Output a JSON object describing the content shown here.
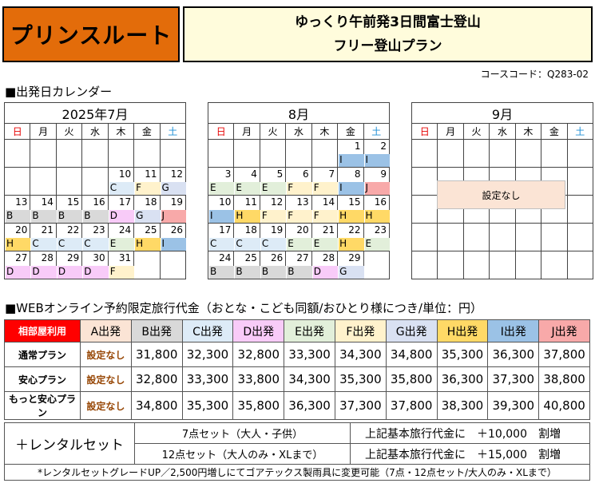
{
  "header": {
    "brand": "プリンスルート",
    "title_line1": "ゆっくり午前発3日間富士登山",
    "title_line2": "フリー登山プラン",
    "course_code": "コースコード：Q283-02"
  },
  "calendar_section_title": "■出発日カレンダー",
  "weekdays": [
    "日",
    "月",
    "火",
    "水",
    "木",
    "金",
    "土"
  ],
  "code_colors": {
    "A": "#fbe4d5",
    "B": "#d9d9d9",
    "C": "#ddebf7",
    "D": "#f8cbf8",
    "E": "#e2efda",
    "F": "#fff2cc",
    "G": "#d9e1f2",
    "H": "#ffd966",
    "I": "#9bc2e6",
    "J": "#f8a9a9"
  },
  "calendars": [
    {
      "month": "2025年7月",
      "weeks": [
        [
          {
            "d": ""
          },
          {
            "d": ""
          },
          {
            "d": ""
          },
          {
            "d": ""
          },
          {
            "d": ""
          },
          {
            "d": ""
          },
          {
            "d": ""
          }
        ],
        [
          {
            "d": ""
          },
          {
            "d": ""
          },
          {
            "d": ""
          },
          {
            "d": ""
          },
          {
            "d": "10",
            "c": "C"
          },
          {
            "d": "11",
            "c": "F"
          },
          {
            "d": "12",
            "c": "G"
          }
        ],
        [
          {
            "d": "13",
            "c": "B"
          },
          {
            "d": "14",
            "c": "B"
          },
          {
            "d": "15",
            "c": "B"
          },
          {
            "d": "16",
            "c": "B"
          },
          {
            "d": "17",
            "c": "D"
          },
          {
            "d": "18",
            "c": "G"
          },
          {
            "d": "19",
            "c": "J"
          }
        ],
        [
          {
            "d": "20",
            "c": "H"
          },
          {
            "d": "21",
            "c": "C"
          },
          {
            "d": "22",
            "c": "C"
          },
          {
            "d": "23",
            "c": "C"
          },
          {
            "d": "24",
            "c": "E"
          },
          {
            "d": "25",
            "c": "H"
          },
          {
            "d": "26",
            "c": "I"
          }
        ],
        [
          {
            "d": "27",
            "c": "D"
          },
          {
            "d": "28",
            "c": "D"
          },
          {
            "d": "29",
            "c": "D"
          },
          {
            "d": "30",
            "c": "D"
          },
          {
            "d": "31",
            "c": "F"
          },
          {
            "d": ""
          },
          {
            "d": ""
          }
        ]
      ]
    },
    {
      "month": "8月",
      "weeks": [
        [
          {
            "d": ""
          },
          {
            "d": ""
          },
          {
            "d": ""
          },
          {
            "d": ""
          },
          {
            "d": ""
          },
          {
            "d": "1",
            "c": "I"
          },
          {
            "d": "2",
            "c": "I"
          }
        ],
        [
          {
            "d": "3",
            "c": "E"
          },
          {
            "d": "4",
            "c": "E"
          },
          {
            "d": "5",
            "c": "E"
          },
          {
            "d": "6",
            "c": "F"
          },
          {
            "d": "7",
            "c": "F"
          },
          {
            "d": "8",
            "c": "I"
          },
          {
            "d": "9",
            "c": "J"
          }
        ],
        [
          {
            "d": "10",
            "c": "I"
          },
          {
            "d": "11",
            "c": "H"
          },
          {
            "d": "12",
            "c": "F"
          },
          {
            "d": "13",
            "c": "F"
          },
          {
            "d": "14",
            "c": "F"
          },
          {
            "d": "15",
            "c": "H"
          },
          {
            "d": "16",
            "c": "H"
          }
        ],
        [
          {
            "d": "17",
            "c": "C"
          },
          {
            "d": "18",
            "c": "C"
          },
          {
            "d": "19",
            "c": "C"
          },
          {
            "d": "20",
            "c": "E"
          },
          {
            "d": "21",
            "c": "E"
          },
          {
            "d": "22",
            "c": "H"
          },
          {
            "d": "23",
            "c": "E"
          }
        ],
        [
          {
            "d": "24",
            "c": "B"
          },
          {
            "d": "25",
            "c": "B"
          },
          {
            "d": "26",
            "c": "B"
          },
          {
            "d": "27",
            "c": "B"
          },
          {
            "d": "28",
            "c": "D"
          },
          {
            "d": "29",
            "c": "G"
          },
          {
            "d": ""
          }
        ]
      ]
    },
    {
      "month": "9月",
      "no_setting": "設定なし",
      "weeks": [
        [
          {
            "d": ""
          },
          {
            "d": ""
          },
          {
            "d": ""
          },
          {
            "d": ""
          },
          {
            "d": ""
          },
          {
            "d": ""
          },
          {
            "d": ""
          }
        ],
        [
          {
            "d": ""
          },
          {
            "d": ""
          },
          {
            "d": ""
          },
          {
            "d": ""
          },
          {
            "d": ""
          },
          {
            "d": ""
          },
          {
            "d": ""
          }
        ],
        [
          {
            "d": ""
          },
          {
            "d": ""
          },
          {
            "d": ""
          },
          {
            "d": ""
          },
          {
            "d": ""
          },
          {
            "d": ""
          },
          {
            "d": ""
          }
        ],
        [
          {
            "d": ""
          },
          {
            "d": ""
          },
          {
            "d": ""
          },
          {
            "d": ""
          },
          {
            "d": ""
          },
          {
            "d": ""
          },
          {
            "d": ""
          }
        ],
        [
          {
            "d": ""
          },
          {
            "d": ""
          },
          {
            "d": ""
          },
          {
            "d": ""
          },
          {
            "d": ""
          },
          {
            "d": ""
          },
          {
            "d": ""
          }
        ]
      ]
    }
  ],
  "price_section_title": "■WEBオンライン予約限定旅行代金（おとな・こども同額/おひとり様につき/単位：円）",
  "price_table": {
    "corner": "相部屋利用",
    "columns": [
      {
        "label": "A出発",
        "color": "#fbe4d5"
      },
      {
        "label": "B出発",
        "color": "#d9d9d9"
      },
      {
        "label": "C出発",
        "color": "#ddebf7"
      },
      {
        "label": "D出発",
        "color": "#f8cbf8"
      },
      {
        "label": "E出発",
        "color": "#e2efda"
      },
      {
        "label": "F出発",
        "color": "#fff2cc"
      },
      {
        "label": "G出発",
        "color": "#d9e1f2"
      },
      {
        "label": "H出発",
        "color": "#ffd966"
      },
      {
        "label": "I出発",
        "color": "#9bc2e6"
      },
      {
        "label": "J出発",
        "color": "#f8a9a9"
      }
    ],
    "rows": [
      {
        "plan": "通常プラン",
        "values": [
          "設定なし",
          "31,800",
          "32,300",
          "32,800",
          "33,300",
          "34,300",
          "34,800",
          "35,300",
          "36,300",
          "37,800"
        ]
      },
      {
        "plan": "安心プラン",
        "values": [
          "設定なし",
          "32,800",
          "33,300",
          "33,800",
          "34,300",
          "35,300",
          "35,800",
          "36,300",
          "37,300",
          "38,800"
        ]
      },
      {
        "plan": "もっと安心プラン",
        "values": [
          "設定なし",
          "34,800",
          "35,300",
          "35,800",
          "36,300",
          "37,300",
          "37,800",
          "38,300",
          "39,300",
          "40,800"
        ]
      }
    ]
  },
  "rental": {
    "label": "＋レンタルセット",
    "rows": [
      {
        "set": "7点セット（大人・子供）",
        "price": "上記基本旅行代金に　＋10,000　割増"
      },
      {
        "set": "12点セット（大人のみ・XLまで）",
        "price": "上記基本旅行代金に　＋15,000　割増"
      }
    ],
    "note": "*レンタルセットグレードUP／2,500円増しにてゴアテックス製雨具に変更可能（7点・12点セット/大人のみ・XLまで）"
  }
}
